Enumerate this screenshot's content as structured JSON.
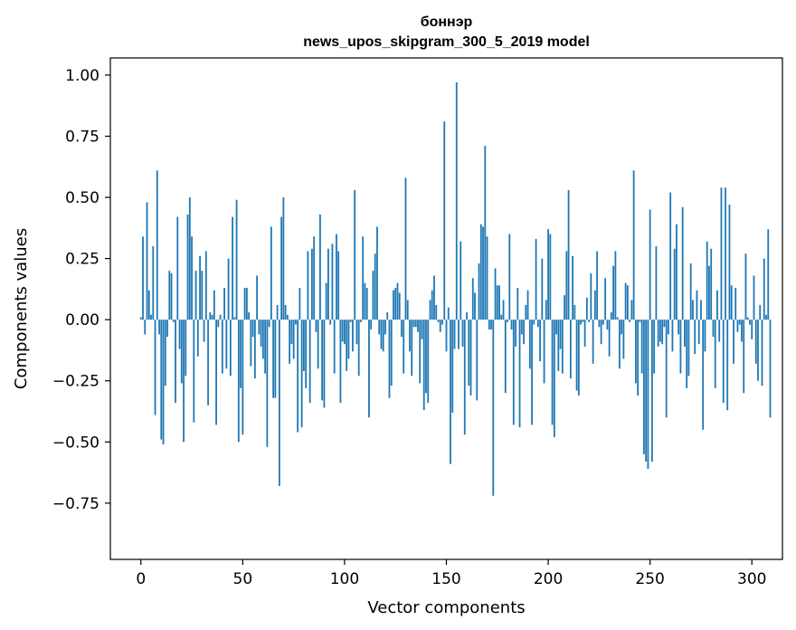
{
  "chart_data": {
    "type": "bar",
    "title": "боннэр",
    "subtitle": "news_upos_skipgram_300_5_2019 model",
    "xlabel": "Vector components",
    "ylabel": "Components values",
    "xlim": [
      -15,
      315
    ],
    "ylim": [
      -0.98,
      1.07
    ],
    "xticks": [
      0,
      50,
      100,
      150,
      200,
      250,
      300
    ],
    "yticks": [
      -0.75,
      -0.5,
      -0.25,
      0.0,
      0.25,
      0.5,
      0.75,
      1.0
    ],
    "ytick_labels": [
      "−0.75",
      "−0.50",
      "−0.25",
      "0.00",
      "0.25",
      "0.50",
      "0.75",
      "1.00"
    ],
    "grid": false,
    "bar_color": "#1f77b4",
    "values": [
      0.01,
      0.34,
      -0.06,
      0.48,
      0.12,
      0.02,
      0.3,
      -0.39,
      0.61,
      -0.06,
      -0.49,
      -0.51,
      -0.27,
      -0.07,
      0.2,
      0.19,
      -0.01,
      -0.34,
      0.42,
      -0.12,
      -0.26,
      -0.5,
      -0.23,
      0.43,
      0.5,
      0.34,
      -0.42,
      0.2,
      -0.15,
      0.26,
      0.2,
      -0.09,
      0.28,
      -0.35,
      0.03,
      0.02,
      0.12,
      -0.43,
      -0.03,
      0.02,
      -0.22,
      0.13,
      -0.2,
      0.25,
      -0.23,
      0.42,
      0.01,
      0.49,
      -0.5,
      -0.28,
      -0.47,
      0.13,
      0.13,
      0.03,
      -0.19,
      -0.07,
      -0.24,
      0.18,
      -0.06,
      -0.11,
      -0.16,
      -0.22,
      -0.52,
      -0.03,
      0.38,
      -0.32,
      -0.32,
      0.06,
      -0.68,
      0.42,
      0.5,
      0.06,
      0.02,
      -0.18,
      -0.1,
      -0.16,
      -0.02,
      -0.46,
      0.13,
      -0.44,
      -0.21,
      -0.28,
      0.28,
      -0.34,
      0.29,
      0.34,
      -0.05,
      -0.2,
      0.43,
      -0.33,
      -0.36,
      0.15,
      0.29,
      -0.02,
      0.31,
      -0.22,
      0.35,
      0.28,
      -0.34,
      -0.09,
      -0.1,
      -0.21,
      -0.16,
      -0.01,
      -0.13,
      0.53,
      -0.1,
      -0.23,
      -0.01,
      0.34,
      0.15,
      0.13,
      -0.4,
      -0.04,
      0.2,
      0.27,
      0.38,
      -0.06,
      -0.12,
      -0.13,
      -0.06,
      0.03,
      -0.32,
      -0.27,
      0.12,
      0.13,
      0.15,
      0.11,
      -0.07,
      -0.22,
      0.58,
      0.08,
      -0.13,
      -0.23,
      -0.03,
      -0.03,
      -0.05,
      -0.26,
      -0.08,
      -0.37,
      -0.3,
      -0.34,
      0.08,
      0.12,
      0.18,
      0.06,
      -0.01,
      -0.05,
      -0.02,
      0.81,
      -0.13,
      0.05,
      -0.59,
      -0.38,
      -0.12,
      0.97,
      -0.12,
      0.32,
      -0.11,
      -0.47,
      0.03,
      -0.27,
      -0.31,
      0.17,
      0.11,
      -0.33,
      0.23,
      0.39,
      0.38,
      0.71,
      0.34,
      -0.04,
      -0.04,
      -0.72,
      0.21,
      0.14,
      0.14,
      0.02,
      0.08,
      -0.3,
      -0.01,
      0.35,
      -0.04,
      -0.43,
      -0.11,
      0.13,
      -0.44,
      -0.06,
      -0.1,
      0.06,
      0.12,
      -0.2,
      -0.43,
      -0.02,
      0.33,
      -0.03,
      -0.17,
      0.25,
      -0.26,
      0.08,
      0.37,
      0.35,
      -0.43,
      -0.48,
      -0.06,
      -0.21,
      -0.12,
      -0.22,
      0.1,
      0.28,
      0.53,
      -0.24,
      0.26,
      0.06,
      -0.29,
      -0.31,
      -0.02,
      -0.01,
      -0.11,
      0.09,
      -0.01,
      0.19,
      -0.18,
      0.12,
      0.28,
      -0.03,
      -0.1,
      -0.02,
      0.17,
      -0.04,
      -0.15,
      0.03,
      0.22,
      0.28,
      0.01,
      -0.2,
      -0.06,
      -0.16,
      0.15,
      0.14,
      -0.01,
      0.08,
      0.61,
      -0.26,
      -0.31,
      -0.01,
      -0.22,
      -0.55,
      -0.58,
      -0.61,
      0.45,
      -0.58,
      -0.22,
      0.3,
      -0.11,
      -0.09,
      -0.1,
      -0.03,
      -0.4,
      -0.06,
      0.52,
      -0.13,
      0.29,
      0.39,
      -0.06,
      -0.22,
      0.46,
      -0.11,
      -0.28,
      -0.23,
      0.23,
      0.08,
      -0.14,
      0.12,
      -0.1,
      0.08,
      -0.45,
      -0.13,
      0.32,
      0.22,
      0.29,
      -0.07,
      -0.28,
      0.12,
      -0.09,
      0.54,
      -0.34,
      0.54,
      -0.37,
      0.47,
      0.14,
      -0.18,
      0.13,
      -0.05,
      -0.02,
      -0.09,
      -0.3,
      0.27,
      0.01,
      -0.02,
      -0.08,
      0.18,
      -0.18,
      -0.25,
      0.06,
      -0.27,
      0.25,
      0.02,
      0.37,
      -0.4
    ]
  }
}
